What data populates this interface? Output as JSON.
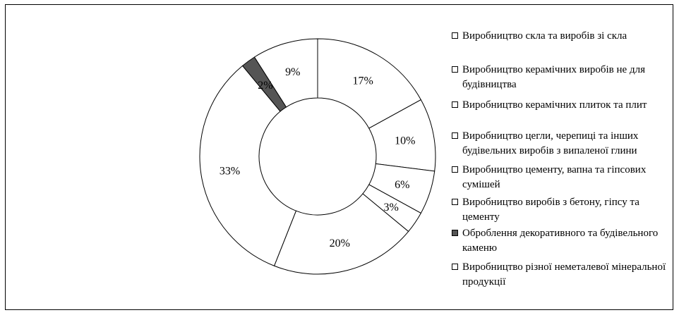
{
  "chart_data": {
    "type": "pie",
    "title": "",
    "categories": [
      "Виробництво скла та виробів зі скла",
      "Виробництво керамічних виробів не для будівництва",
      "Виробництво керамічних плиток та плит",
      "Виробництво цегли, черепиці та інших будівельних виробів з випаленої глини",
      "Виробництво цементу, вапна та гіпсових сумішей",
      "Виробництво виробів з бетону, гіпсу та цементу",
      "Оброблення декоративного та будівельного каменю",
      "Виробництво різної неметалевої мінеральної продукції"
    ],
    "slices": [
      {
        "label": "17%",
        "value": 17,
        "color": "#ffffff"
      },
      {
        "label": "10%",
        "value": 10,
        "color": "#ffffff"
      },
      {
        "label": "6%",
        "value": 6,
        "color": "#ffffff"
      },
      {
        "label": "3%",
        "value": 3,
        "color": "#ffffff"
      },
      {
        "label": "20%",
        "value": 20,
        "color": "#ffffff"
      },
      {
        "label": "33%",
        "value": 33,
        "color": "#ffffff"
      },
      {
        "label": "2%",
        "value": 2,
        "color": "#555555"
      },
      {
        "label": "9%",
        "value": 9,
        "color": "#ffffff"
      }
    ],
    "legend_position": "right",
    "legend": [
      {
        "text": "Виробництво скла та виробів зі скла",
        "color": "#ffffff"
      },
      {
        "text": "Виробництво керамічних виробів не для будівництва",
        "color": "#ffffff"
      },
      {
        "text": "Виробництво керамічних плиток та плит",
        "color": "#ffffff"
      },
      {
        "text": "Виробництво цегли, черепиці та інших будівельних виробів з випаленої глини",
        "color": "#ffffff"
      },
      {
        "text": "Виробництво цементу, вапна та гіпсових сумішей",
        "color": "#ffffff"
      },
      {
        "text": "Виробництво виробів з бетону, гіпсу та цементу",
        "color": "#ffffff"
      },
      {
        "text": "Оброблення декоративного та будівельного каменю",
        "color": "#555555"
      },
      {
        "text": "Виробництво різної неметалевої мінеральної продукції",
        "color": "#ffffff"
      }
    ]
  }
}
